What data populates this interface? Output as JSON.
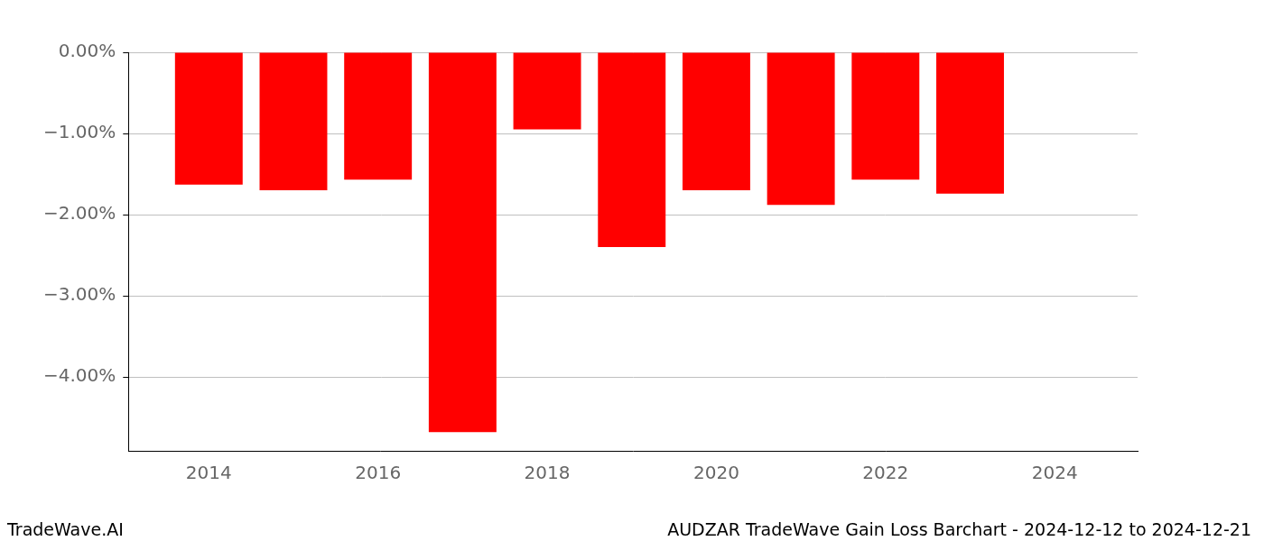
{
  "chart_data": {
    "type": "bar",
    "title": "AUDZAR TradeWave Gain Loss Barchart - 2024-12-12 to 2024-12-21",
    "annotations": [
      "TradeWave.AI"
    ],
    "x": [
      2014,
      2015,
      2016,
      2017,
      2018,
      2019,
      2020,
      2021,
      2022,
      2023
    ],
    "values": [
      -1.63,
      -1.7,
      -1.57,
      -4.68,
      -0.95,
      -2.4,
      -1.7,
      -1.88,
      -1.57,
      -1.74
    ],
    "color": "#ff0000",
    "xlim": [
      2013.05,
      2024.98
    ],
    "xticks": [
      2014,
      2016,
      2018,
      2020,
      2022,
      2024
    ],
    "ylim": [
      -4.91,
      0
    ],
    "yticks": [
      {
        "value": 0,
        "label": "0.00%"
      },
      {
        "value": -1,
        "label": "−1.00%"
      },
      {
        "value": -2,
        "label": "−2.00%"
      },
      {
        "value": -3,
        "label": "−3.00%"
      },
      {
        "value": -4,
        "label": "−4.00%"
      }
    ],
    "grid": true
  }
}
